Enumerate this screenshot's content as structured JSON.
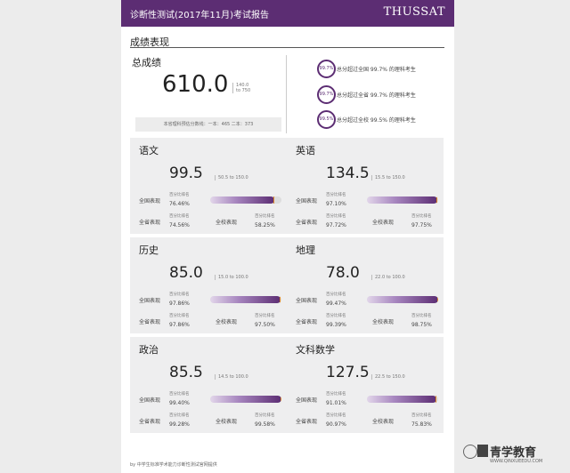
{
  "header": {
    "title": "诊断性测试(2017年11月)考试报告",
    "brand": "THUSSAT"
  },
  "section_title": "成绩表现",
  "total": {
    "label": "总成绩",
    "score": "610.0",
    "range_line1": "140.0",
    "range_line2": "to 750",
    "cutoff": "本省理科预估分数线：一本：465 二本：373"
  },
  "percentiles": [
    {
      "circle": "99.7%",
      "text": "总分超过全国 99.7% 的理科考生"
    },
    {
      "circle": "99.7%",
      "text": "总分超过全省 99.7% 的理科考生"
    },
    {
      "circle": "99.5%",
      "text": "总分超过全校 99.5% 的理科考生"
    }
  ],
  "labels": {
    "national": "全国表现",
    "provincial": "全省表现",
    "school": "全校表现",
    "pct_rank": "百分比排名"
  },
  "subjects": [
    {
      "name": "语文",
      "score": "99.5",
      "range": "50.5 to 150.0",
      "national": "76.46%",
      "provincial": "74.56%",
      "school": "58.25%",
      "bar_level": 0.9
    },
    {
      "name": "英语",
      "score": "134.5",
      "range": "15.5 to 150.0",
      "national": "97.10%",
      "provincial": "97.72%",
      "school": "97.75%",
      "bar_level": 0.99
    },
    {
      "name": "历史",
      "score": "85.0",
      "range": "15.0 to 100.0",
      "national": "97.86%",
      "provincial": "97.86%",
      "school": "97.50%",
      "bar_level": 0.99
    },
    {
      "name": "地理",
      "score": "78.0",
      "range": "22.0 to 100.0",
      "national": "99.47%",
      "provincial": "99.39%",
      "school": "98.75%",
      "bar_level": 1.0
    },
    {
      "name": "政治",
      "score": "85.5",
      "range": "14.5 to 100.0",
      "national": "99.40%",
      "provincial": "99.28%",
      "school": "99.58%",
      "bar_level": 1.0
    },
    {
      "name": "文科数学",
      "score": "127.5",
      "range": "22.5 to 150.0",
      "national": "91.01%",
      "provincial": "90.97%",
      "school": "75.83%",
      "bar_level": 0.97
    }
  ],
  "footer": "by 中学生标准学术能力诊断性测试官网提供",
  "watermark": {
    "text": "青学教育",
    "sub": "WWW.QINXUEEDU.COM"
  }
}
